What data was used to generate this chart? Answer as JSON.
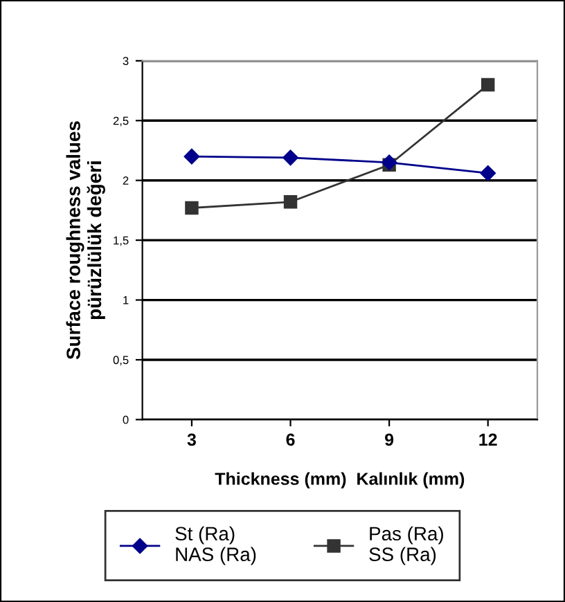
{
  "chart_data": {
    "type": "line",
    "xlabel": "Thickness (mm)  Kalınlık (mm)",
    "ylabel": "Surface roughness values\npürüzlülük değeri",
    "categories": [
      "3",
      "6",
      "9",
      "12"
    ],
    "series": [
      {
        "name": "St (Ra)\nNAS (Ra)",
        "color": "#00008b",
        "marker": "diamond",
        "values": [
          2.2,
          2.19,
          2.15,
          2.06
        ]
      },
      {
        "name": "Pas (Ra)\nSS (Ra)",
        "color": "#333333",
        "marker": "square",
        "values": [
          1.77,
          1.82,
          2.13,
          2.8
        ]
      }
    ],
    "ylim": [
      0,
      3
    ],
    "yticks": [
      0,
      {
        "value": 0.5,
        "label": "0,5"
      },
      1,
      {
        "value": 1.5,
        "label": "1,5"
      },
      2,
      {
        "value": 2.5,
        "label": "2,5"
      },
      3
    ],
    "grid": "y",
    "legend": "bottom",
    "line_style": "solid"
  }
}
